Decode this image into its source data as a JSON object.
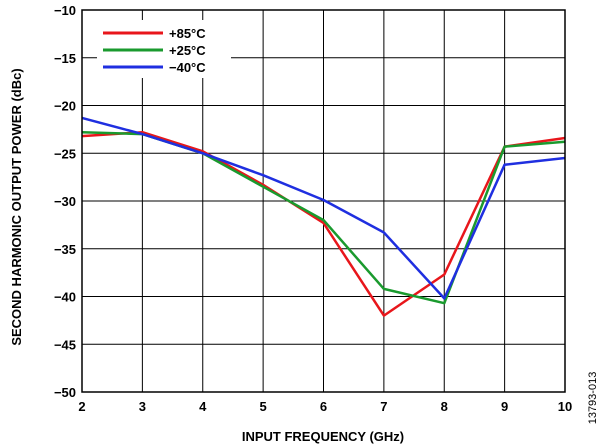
{
  "chart_data": {
    "type": "line",
    "xlabel": "INPUT FREQUENCY (GHz)",
    "ylabel": "SECOND HARMONIC OUTPUT POWER (dBc)",
    "xlim": [
      2,
      10
    ],
    "ylim": [
      -50,
      -10
    ],
    "x_ticks": [
      "2",
      "3",
      "4",
      "5",
      "6",
      "7",
      "8",
      "9",
      "10"
    ],
    "y_ticks": [
      "−10",
      "−15",
      "−20",
      "−25",
      "−30",
      "−35",
      "−40",
      "−45",
      "−50"
    ],
    "grid": true,
    "legend_position": "top-left",
    "x": [
      2,
      3,
      4,
      5,
      6,
      7,
      8,
      9,
      10
    ],
    "series": [
      {
        "name": "+85°C",
        "color": "#e8161b",
        "values": [
          -23.2,
          -22.8,
          -24.8,
          -28.3,
          -32.3,
          -42.0,
          -37.7,
          -24.3,
          -23.4
        ]
      },
      {
        "name": "+25°C",
        "color": "#1a9a2e",
        "values": [
          -22.8,
          -23.0,
          -25.0,
          -28.5,
          -32.0,
          -39.2,
          -40.7,
          -24.3,
          -23.8
        ]
      },
      {
        "name": "−40°C",
        "color": "#1f2fe0",
        "values": [
          -21.3,
          -23.0,
          -25.0,
          -27.3,
          -29.9,
          -33.3,
          -40.2,
          -26.2,
          -25.5
        ]
      }
    ]
  },
  "figure_id": "13793-013"
}
